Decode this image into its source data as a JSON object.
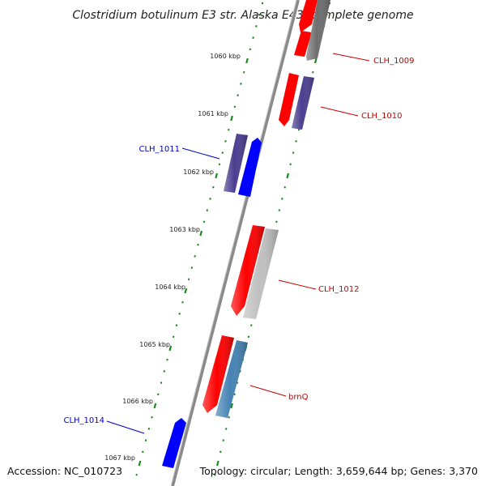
{
  "title": "Clostridium botulinum E3 str. Alaska E43, complete genome",
  "footer": {
    "accession": "Accession: NC_010723",
    "summary": "Topology: circular; Length: 3,659,644 bp; Genes: 3,370"
  },
  "scale": {
    "unit": "kbp",
    "major_ticks": [
      "1060 kbp",
      "1061 kbp",
      "1062 kbp",
      "1063 kbp",
      "1064 kbp",
      "1065 kbp",
      "1066 kbp",
      "1067 kbp"
    ]
  },
  "genes": [
    {
      "label": "CLH_1009",
      "strand": "+",
      "label_color": "#cc0000"
    },
    {
      "label": "CLH_1010",
      "strand": "+",
      "label_color": "#cc0000"
    },
    {
      "label": "CLH_1011",
      "strand": "-",
      "label_color": "#0000cc"
    },
    {
      "label": "CLH_1012",
      "strand": "+",
      "label_color": "#cc0000"
    },
    {
      "label": "brnQ",
      "strand": "+",
      "label_color": "#cc0000"
    },
    {
      "label": "CLH_1014",
      "strand": "-",
      "label_color": "#0000cc"
    }
  ],
  "colors": {
    "backbone": "#808080",
    "tick": "#1a8a1a",
    "cds": "#ff0000",
    "gene_blue": "#0000ff",
    "gene_purple": "#4b3d8f",
    "gene_gray": "#707070",
    "gene_lightgray": "#c0c0c0",
    "gene_steelblue": "#4682b4"
  }
}
